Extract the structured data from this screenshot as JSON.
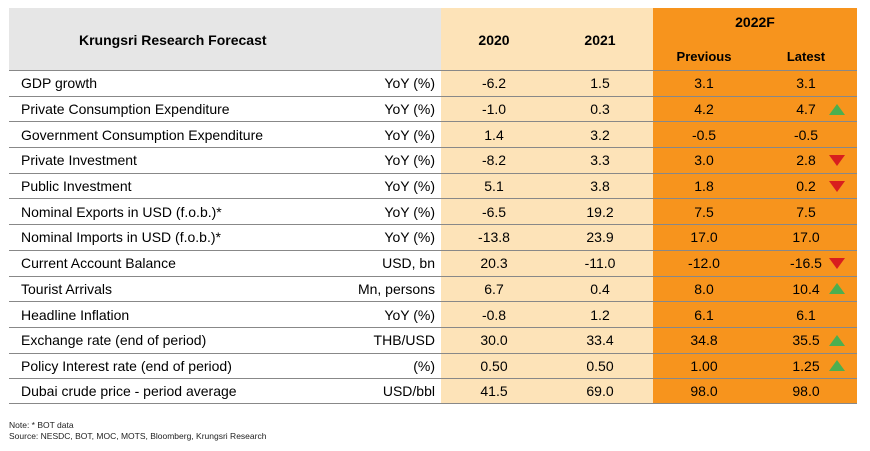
{
  "header": {
    "title": "Krungsri Research Forecast",
    "y2020": "2020",
    "y2021": "2021",
    "y2022": "2022F",
    "previous": "Previous",
    "latest": "Latest"
  },
  "rows": [
    {
      "name": "GDP growth",
      "unit": "YoY (%)",
      "v2020": "-6.2",
      "v2021": "1.5",
      "prev": "3.1",
      "latest": "3.1",
      "trend": "none"
    },
    {
      "name": "Private Consumption Expenditure",
      "unit": "YoY (%)",
      "v2020": "-1.0",
      "v2021": "0.3",
      "prev": "4.2",
      "latest": "4.7",
      "trend": "up"
    },
    {
      "name": "Government Consumption Expenditure",
      "unit": "YoY (%)",
      "v2020": "1.4",
      "v2021": "3.2",
      "prev": "-0.5",
      "latest": "-0.5",
      "trend": "none"
    },
    {
      "name": "Private Investment",
      "unit": "YoY (%)",
      "v2020": "-8.2",
      "v2021": "3.3",
      "prev": "3.0",
      "latest": "2.8",
      "trend": "down"
    },
    {
      "name": "Public Investment",
      "unit": "YoY (%)",
      "v2020": "5.1",
      "v2021": "3.8",
      "prev": "1.8",
      "latest": "0.2",
      "trend": "down"
    },
    {
      "name": "Nominal Exports in USD (f.o.b.)*",
      "unit": "YoY (%)",
      "v2020": "-6.5",
      "v2021": "19.2",
      "prev": "7.5",
      "latest": "7.5",
      "trend": "none"
    },
    {
      "name": "Nominal Imports in USD (f.o.b.)*",
      "unit": "YoY (%)",
      "v2020": "-13.8",
      "v2021": "23.9",
      "prev": "17.0",
      "latest": "17.0",
      "trend": "none"
    },
    {
      "name": "Current Account Balance",
      "unit": "USD, bn",
      "v2020": "20.3",
      "v2021": "-11.0",
      "prev": "-12.0",
      "latest": "-16.5",
      "trend": "down"
    },
    {
      "name": "Tourist Arrivals",
      "unit": "Mn, persons",
      "v2020": "6.7",
      "v2021": "0.4",
      "prev": "8.0",
      "latest": "10.4",
      "trend": "up"
    },
    {
      "name": "Headline Inflation",
      "unit": "YoY (%)",
      "v2020": "-0.8",
      "v2021": "1.2",
      "prev": "6.1",
      "latest": "6.1",
      "trend": "none"
    },
    {
      "name": "Exchange rate (end of period)",
      "unit": "THB/USD",
      "v2020": "30.0",
      "v2021": "33.4",
      "prev": "34.8",
      "latest": "35.5",
      "trend": "up"
    },
    {
      "name": "Policy Interest rate (end of period)",
      "unit": "(%)",
      "v2020": "0.50",
      "v2021": "0.50",
      "prev": "1.00",
      "latest": "1.25",
      "trend": "up"
    },
    {
      "name": "Dubai crude price - period average",
      "unit": "USD/bbl",
      "v2020": "41.5",
      "v2021": "69.0",
      "prev": "98.0",
      "latest": "98.0",
      "trend": "none"
    }
  ],
  "notes": {
    "note": "Note: * BOT data",
    "source": "Source: NESDC, BOT, MOC, MOTS, Bloomberg, Krungsri Research"
  },
  "colors": {
    "label_header_bg": "#e6e6e6",
    "actual_bg": "#fde3b8",
    "forecast_bg": "#f7941d",
    "arrow_up": "#4caf50",
    "arrow_down": "#d81e1e"
  },
  "icons": {
    "up": "triangle-up-icon",
    "down": "triangle-down-icon"
  }
}
